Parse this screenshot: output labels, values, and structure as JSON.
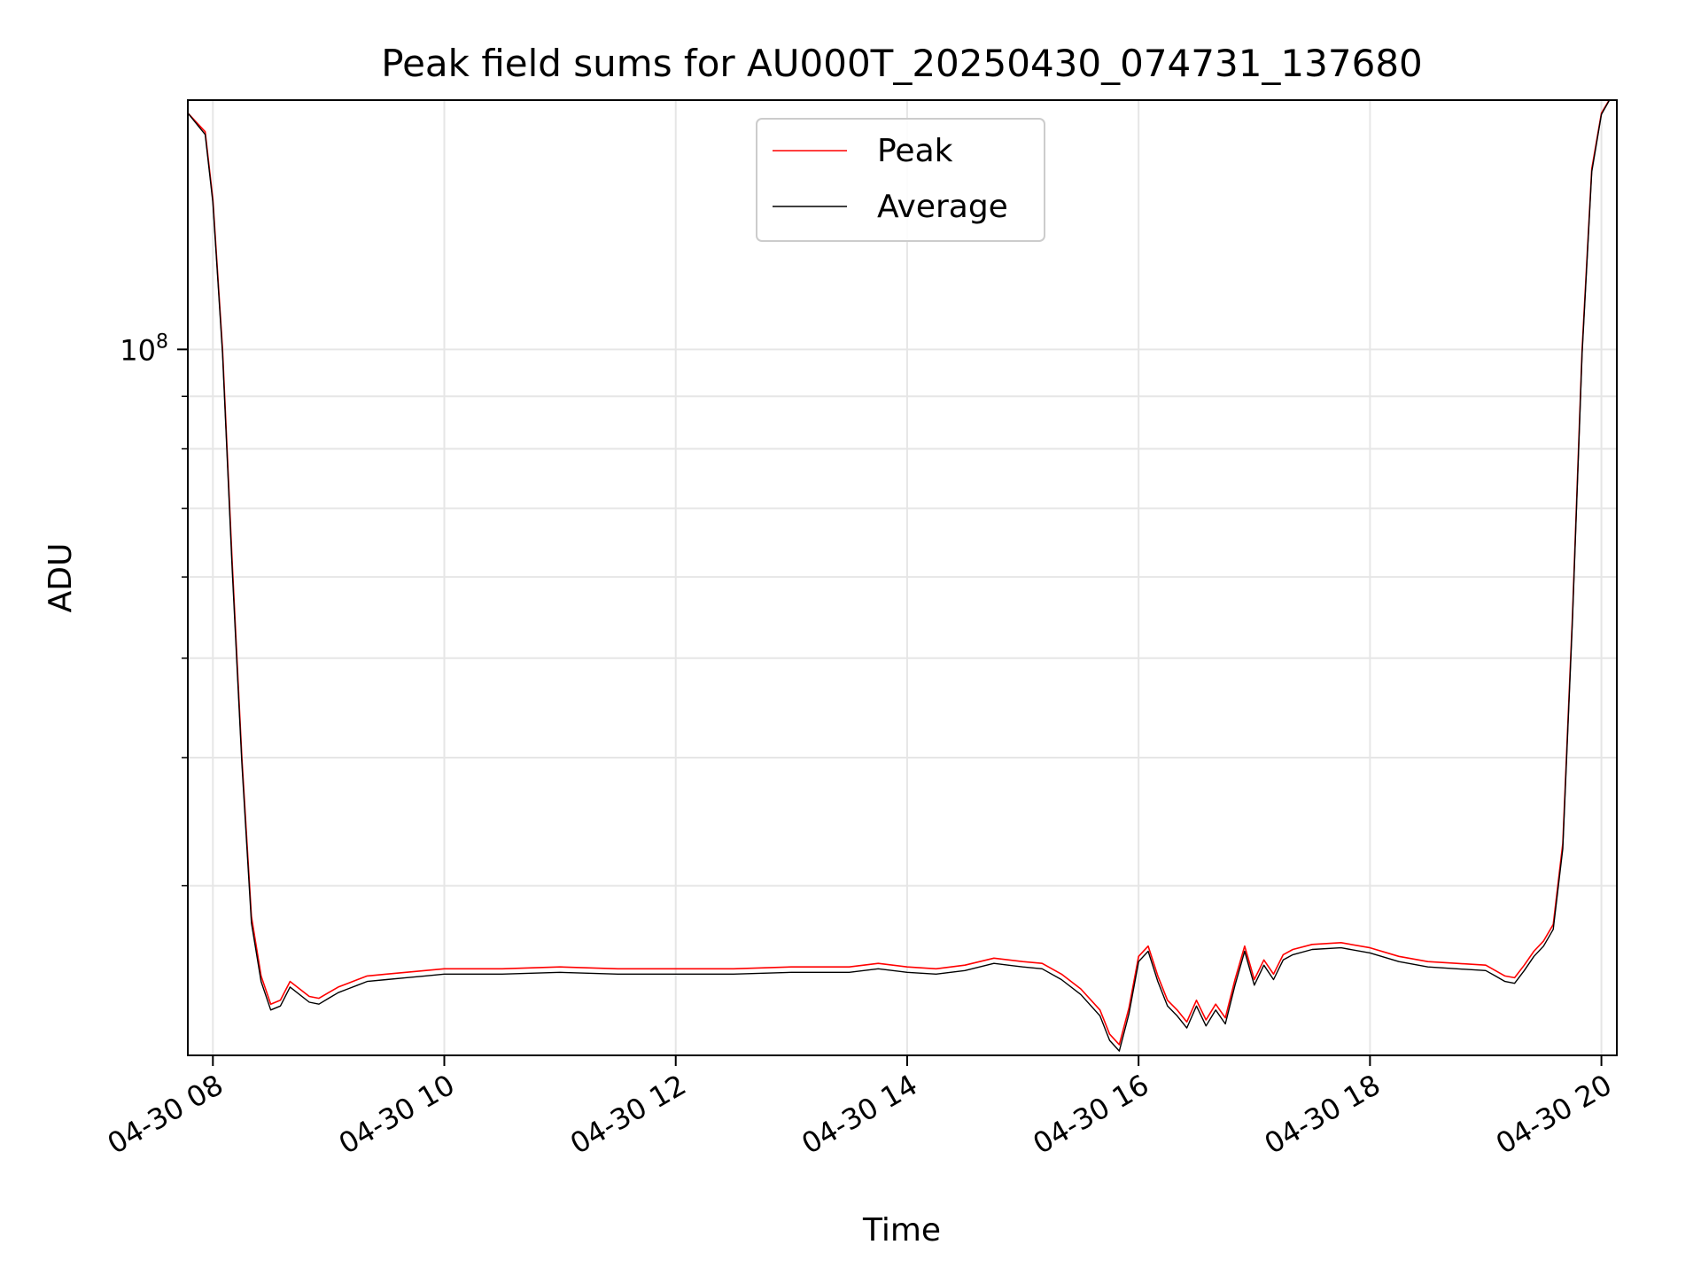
{
  "chart_data": {
    "type": "line",
    "title": "Peak field sums for AU000T_20250430_074731_137680",
    "xlabel": "Time",
    "ylabel": "ADU",
    "y_scale": "log",
    "ylim": [
      20500000,
      175000000
    ],
    "xlim": [
      "2025-04-30 07:47",
      "2025-04-30 20:08"
    ],
    "x_ticks": [
      {
        "value": "2025-04-30 08:00",
        "label": "04-30 08"
      },
      {
        "value": "2025-04-30 10:00",
        "label": "04-30 10"
      },
      {
        "value": "2025-04-30 12:00",
        "label": "04-30 12"
      },
      {
        "value": "2025-04-30 14:00",
        "label": "04-30 14"
      },
      {
        "value": "2025-04-30 16:00",
        "label": "04-30 16"
      },
      {
        "value": "2025-04-30 18:00",
        "label": "04-30 18"
      },
      {
        "value": "2025-04-30 20:00",
        "label": "04-30 20"
      }
    ],
    "y_major_ticks": [
      {
        "value": 100000000,
        "label": "10",
        "exponent": "8"
      }
    ],
    "grid": true,
    "legend_position": "upper center",
    "series": [
      {
        "name": "Peak",
        "color": "#ff0000",
        "x": [
          "2025-04-30 07:47",
          "2025-04-30 07:56",
          "2025-04-30 08:00",
          "2025-04-30 08:05",
          "2025-04-30 08:10",
          "2025-04-30 08:15",
          "2025-04-30 08:20",
          "2025-04-30 08:25",
          "2025-04-30 08:30",
          "2025-04-30 08:35",
          "2025-04-30 08:40",
          "2025-04-30 08:50",
          "2025-04-30 08:55",
          "2025-04-30 09:00",
          "2025-04-30 09:05",
          "2025-04-30 09:10",
          "2025-04-30 09:15",
          "2025-04-30 09:20",
          "2025-04-30 09:30",
          "2025-04-30 09:40",
          "2025-04-30 09:50",
          "2025-04-30 10:00",
          "2025-04-30 10:30",
          "2025-04-30 11:00",
          "2025-04-30 11:30",
          "2025-04-30 12:00",
          "2025-04-30 12:30",
          "2025-04-30 13:00",
          "2025-04-30 13:30",
          "2025-04-30 13:45",
          "2025-04-30 14:00",
          "2025-04-30 14:15",
          "2025-04-30 14:30",
          "2025-04-30 14:45",
          "2025-04-30 15:00",
          "2025-04-30 15:10",
          "2025-04-30 15:20",
          "2025-04-30 15:30",
          "2025-04-30 15:40",
          "2025-04-30 15:45",
          "2025-04-30 15:50",
          "2025-04-30 15:55",
          "2025-04-30 16:00",
          "2025-04-30 16:05",
          "2025-04-30 16:10",
          "2025-04-30 16:15",
          "2025-04-30 16:20",
          "2025-04-30 16:25",
          "2025-04-30 16:30",
          "2025-04-30 16:35",
          "2025-04-30 16:40",
          "2025-04-30 16:45",
          "2025-04-30 16:50",
          "2025-04-30 16:55",
          "2025-04-30 17:00",
          "2025-04-30 17:05",
          "2025-04-30 17:10",
          "2025-04-30 17:15",
          "2025-04-30 17:20",
          "2025-04-30 17:30",
          "2025-04-30 17:45",
          "2025-04-30 18:00",
          "2025-04-30 18:15",
          "2025-04-30 18:30",
          "2025-04-30 18:45",
          "2025-04-30 19:00",
          "2025-04-30 19:05",
          "2025-04-30 19:10",
          "2025-04-30 19:15",
          "2025-04-30 19:20",
          "2025-04-30 19:25",
          "2025-04-30 19:30",
          "2025-04-30 19:35",
          "2025-04-30 19:40",
          "2025-04-30 19:45",
          "2025-04-30 19:50",
          "2025-04-30 19:55",
          "2025-04-30 20:00",
          "2025-04-30 20:04"
        ],
        "y": [
          170000000,
          163000000,
          140000000,
          100000000,
          62000000,
          40000000,
          28000000,
          24500000,
          23000000,
          23200000,
          24200000,
          23400000,
          23300000,
          23600000,
          23900000,
          24100000,
          24300000,
          24500000,
          24600000,
          24700000,
          24800000,
          24900000,
          24900000,
          25000000,
          24900000,
          24900000,
          24900000,
          25000000,
          25000000,
          25200000,
          25000000,
          24900000,
          25100000,
          25500000,
          25300000,
          25200000,
          24600000,
          23800000,
          22700000,
          21500000,
          21000000,
          22800000,
          25600000,
          26200000,
          24500000,
          23200000,
          22700000,
          22100000,
          23200000,
          22200000,
          23000000,
          22300000,
          24300000,
          26200000,
          24300000,
          25400000,
          24600000,
          25700000,
          26000000,
          26300000,
          26400000,
          26100000,
          25600000,
          25300000,
          25200000,
          25100000,
          24800000,
          24500000,
          24400000,
          25100000,
          25900000,
          26500000,
          27500000,
          33000000,
          55000000,
          100000000,
          150000000,
          170000000,
          175000000
        ]
      },
      {
        "name": "Average",
        "color": "#000000",
        "x": [
          "2025-04-30 07:47",
          "2025-04-30 07:56",
          "2025-04-30 08:00",
          "2025-04-30 08:05",
          "2025-04-30 08:10",
          "2025-04-30 08:15",
          "2025-04-30 08:20",
          "2025-04-30 08:25",
          "2025-04-30 08:30",
          "2025-04-30 08:35",
          "2025-04-30 08:40",
          "2025-04-30 08:50",
          "2025-04-30 08:55",
          "2025-04-30 09:00",
          "2025-04-30 09:05",
          "2025-04-30 09:10",
          "2025-04-30 09:15",
          "2025-04-30 09:20",
          "2025-04-30 09:30",
          "2025-04-30 09:40",
          "2025-04-30 09:50",
          "2025-04-30 10:00",
          "2025-04-30 10:30",
          "2025-04-30 11:00",
          "2025-04-30 11:30",
          "2025-04-30 12:00",
          "2025-04-30 12:30",
          "2025-04-30 13:00",
          "2025-04-30 13:30",
          "2025-04-30 13:45",
          "2025-04-30 14:00",
          "2025-04-30 14:15",
          "2025-04-30 14:30",
          "2025-04-30 14:45",
          "2025-04-30 15:00",
          "2025-04-30 15:10",
          "2025-04-30 15:20",
          "2025-04-30 15:30",
          "2025-04-30 15:40",
          "2025-04-30 15:45",
          "2025-04-30 15:50",
          "2025-04-30 15:55",
          "2025-04-30 16:00",
          "2025-04-30 16:05",
          "2025-04-30 16:10",
          "2025-04-30 16:15",
          "2025-04-30 16:20",
          "2025-04-30 16:25",
          "2025-04-30 16:30",
          "2025-04-30 16:35",
          "2025-04-30 16:40",
          "2025-04-30 16:45",
          "2025-04-30 16:50",
          "2025-04-30 16:55",
          "2025-04-30 17:00",
          "2025-04-30 17:05",
          "2025-04-30 17:10",
          "2025-04-30 17:15",
          "2025-04-30 17:20",
          "2025-04-30 17:30",
          "2025-04-30 17:45",
          "2025-04-30 18:00",
          "2025-04-30 18:15",
          "2025-04-30 18:30",
          "2025-04-30 18:45",
          "2025-04-30 19:00",
          "2025-04-30 19:05",
          "2025-04-30 19:10",
          "2025-04-30 19:15",
          "2025-04-30 19:20",
          "2025-04-30 19:25",
          "2025-04-30 19:30",
          "2025-04-30 19:35",
          "2025-04-30 19:40",
          "2025-04-30 19:45",
          "2025-04-30 19:50",
          "2025-04-30 19:55",
          "2025-04-30 20:00",
          "2025-04-30 20:04"
        ],
        "y": [
          170000000,
          162000000,
          139000000,
          99000000,
          61000000,
          39500000,
          27600000,
          24200000,
          22700000,
          22900000,
          23900000,
          23100000,
          23000000,
          23300000,
          23600000,
          23800000,
          24000000,
          24200000,
          24300000,
          24400000,
          24500000,
          24600000,
          24600000,
          24700000,
          24600000,
          24600000,
          24600000,
          24700000,
          24700000,
          24900000,
          24700000,
          24600000,
          24800000,
          25200000,
          25000000,
          24900000,
          24300000,
          23500000,
          22400000,
          21200000,
          20700000,
          22500000,
          25300000,
          25900000,
          24200000,
          22900000,
          22400000,
          21800000,
          22900000,
          21900000,
          22700000,
          22000000,
          24000000,
          25900000,
          24000000,
          25100000,
          24300000,
          25400000,
          25700000,
          26000000,
          26100000,
          25800000,
          25300000,
          25000000,
          24900000,
          24800000,
          24500000,
          24200000,
          24100000,
          24800000,
          25600000,
          26200000,
          27200000,
          32600000,
          54400000,
          99000000,
          149000000,
          169500000,
          174800000
        ]
      }
    ]
  }
}
